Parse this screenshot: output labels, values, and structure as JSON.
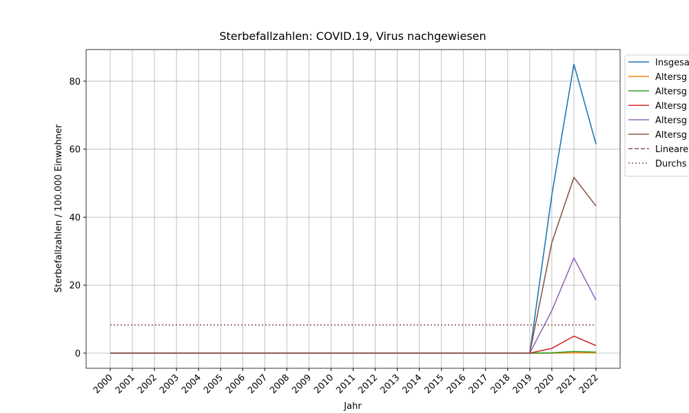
{
  "chart_data": {
    "type": "line",
    "title": "Sterbefallzahlen: COVID.19, Virus nachgewiesen",
    "x_label": "Jahr",
    "y_label": "Sterbefallzahlen / 100.000 Einwohner",
    "categories": [
      "2000",
      "2001",
      "2002",
      "2003",
      "2004",
      "2005",
      "2006",
      "2007",
      "2008",
      "2009",
      "2010",
      "2011",
      "2012",
      "2013",
      "2014",
      "2015",
      "2016",
      "2017",
      "2018",
      "2019",
      "2020",
      "2021",
      "2022"
    ],
    "ylim": [
      -4.45,
      89.3
    ],
    "yticks": [
      0,
      20,
      40,
      60,
      80
    ],
    "grid": true,
    "legend": "outside-right",
    "series": [
      {
        "name": "Insgesa",
        "color": "#1f77b4",
        "linestyle": "solid",
        "values": [
          0,
          0,
          0,
          0,
          0,
          0,
          0,
          0,
          0,
          0,
          0,
          0,
          0,
          0,
          0,
          0,
          0,
          0,
          0,
          0,
          46.5,
          85,
          61.5
        ]
      },
      {
        "name": "Altersg",
        "color": "#ff7f0e",
        "linestyle": "solid",
        "values": [
          0,
          0,
          0,
          0,
          0,
          0,
          0,
          0,
          0,
          0,
          0,
          0,
          0,
          0,
          0,
          0,
          0,
          0,
          0,
          0,
          0,
          0.1,
          0.1
        ]
      },
      {
        "name": "Altersg",
        "color": "#2ca02c",
        "linestyle": "solid",
        "values": [
          0,
          0,
          0,
          0,
          0,
          0,
          0,
          0,
          0,
          0,
          0,
          0,
          0,
          0,
          0,
          0,
          0,
          0,
          0,
          0,
          0.1,
          0.5,
          0.3
        ]
      },
      {
        "name": "Altersg",
        "color": "#d62728",
        "linestyle": "solid",
        "values": [
          0,
          0,
          0,
          0,
          0,
          0,
          0,
          0,
          0,
          0,
          0,
          0,
          0,
          0,
          0,
          0,
          0,
          0,
          0,
          0,
          1.4,
          5.0,
          2.2
        ]
      },
      {
        "name": "Altersg",
        "color": "#9467bd",
        "linestyle": "solid",
        "values": [
          0,
          0,
          0,
          0,
          0,
          0,
          0,
          0,
          0,
          0,
          0,
          0,
          0,
          0,
          0,
          0,
          0,
          0,
          0,
          0,
          12.5,
          28,
          15.6
        ]
      },
      {
        "name": "Altersg",
        "color": "#8c564b",
        "linestyle": "solid",
        "values": [
          0,
          0,
          0,
          0,
          0,
          0,
          0,
          0,
          0,
          0,
          0,
          0,
          0,
          0,
          0,
          0,
          0,
          0,
          0,
          0,
          32.5,
          51.7,
          43.3
        ]
      },
      {
        "name": "Lineare",
        "color": "#8c564b",
        "linestyle": "dashed",
        "values": [
          0,
          0,
          0,
          0,
          0,
          0,
          0,
          0,
          0,
          0,
          0,
          0,
          0,
          0,
          0,
          0,
          0,
          0,
          0,
          0,
          null,
          null,
          null
        ]
      },
      {
        "name": "Durchs",
        "color": "#8c564b",
        "linestyle": "dotted",
        "values": [
          8.3,
          8.3,
          8.3,
          8.3,
          8.3,
          8.3,
          8.3,
          8.3,
          8.3,
          8.3,
          8.3,
          8.3,
          8.3,
          8.3,
          8.3,
          8.3,
          8.3,
          8.3,
          8.3,
          8.3,
          8.3,
          8.3,
          8.3
        ]
      }
    ]
  }
}
